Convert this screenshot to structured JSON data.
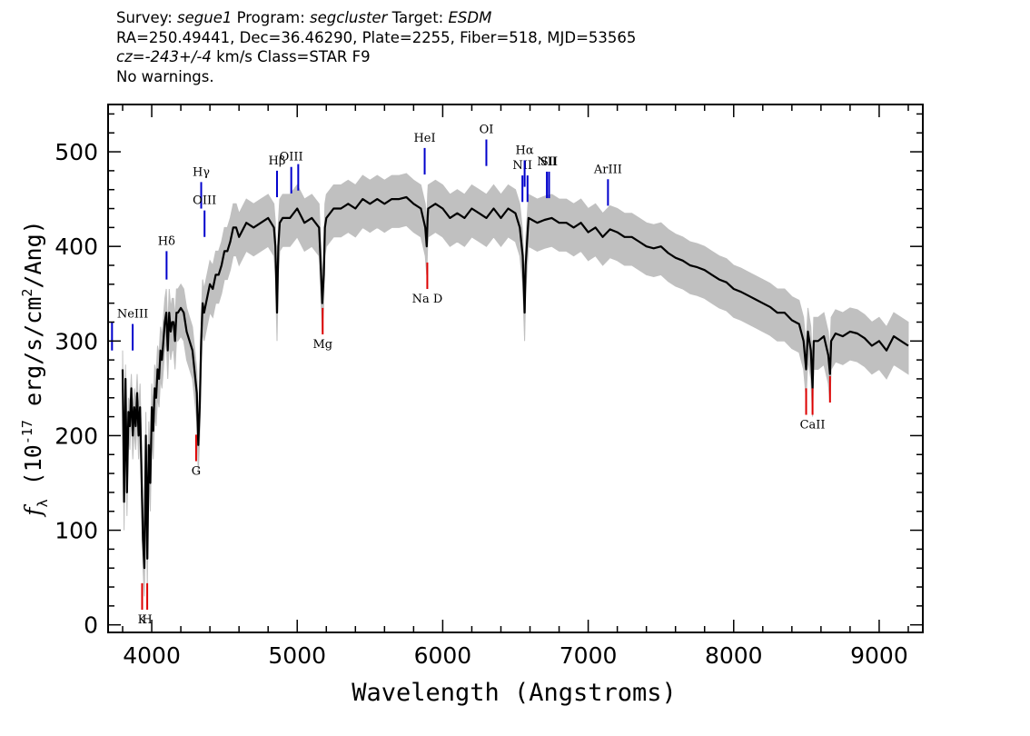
{
  "header": {
    "line1": {
      "survey_label": "Survey:",
      "survey": "segue1",
      "program_label": "Program:",
      "program": "segcluster",
      "target_label": "Target:",
      "target": "ESDM"
    },
    "line2": "RA=250.49441, Dec=36.46290, Plate=2255, Fiber=518, MJD=53565",
    "line3": {
      "cz_label": "cz=",
      "cz_value": "-243+/-4",
      "cz_rest": " km/s Class=STAR F9"
    },
    "line4": "No warnings."
  },
  "chart_data": {
    "type": "line",
    "xlabel": "Wavelength (Angstroms)",
    "ylabel": {
      "f": "f",
      "lambda": "λ",
      "open": " (10",
      "exp": "-17",
      "units": " erg/s/cm",
      "sq": "2",
      "close": "/Ang)"
    },
    "xlim": [
      3700,
      9300
    ],
    "ylim": [
      -8,
      550
    ],
    "x_ticks": [
      4000,
      5000,
      6000,
      7000,
      8000,
      9000
    ],
    "y_ticks": [
      0,
      100,
      200,
      300,
      400,
      500
    ],
    "colors": {
      "flux": "#000000",
      "error": "#c0c0c0",
      "emission": "#0000cc",
      "absorption": "#dd0000"
    },
    "series": [
      {
        "role": "flux",
        "x": [
          3800,
          3810,
          3820,
          3830,
          3840,
          3850,
          3860,
          3870,
          3880,
          3890,
          3900,
          3910,
          3920,
          3930,
          3940,
          3950,
          3960,
          3970,
          3980,
          3990,
          4000,
          4010,
          4020,
          4030,
          4040,
          4050,
          4060,
          4070,
          4080,
          4090,
          4100,
          4110,
          4120,
          4130,
          4140,
          4150,
          4160,
          4170,
          4180,
          4200,
          4220,
          4240,
          4260,
          4280,
          4300,
          4310,
          4320,
          4330,
          4340,
          4350,
          4360,
          4380,
          4400,
          4420,
          4440,
          4460,
          4480,
          4500,
          4520,
          4540,
          4560,
          4580,
          4600,
          4650,
          4700,
          4750,
          4800,
          4840,
          4850,
          4861,
          4870,
          4880,
          4900,
          4950,
          5000,
          5050,
          5100,
          5150,
          5167,
          5172,
          5183,
          5190,
          5200,
          5250,
          5300,
          5350,
          5400,
          5450,
          5500,
          5550,
          5600,
          5650,
          5700,
          5750,
          5800,
          5850,
          5880,
          5890,
          5896,
          5900,
          5950,
          6000,
          6050,
          6100,
          6150,
          6200,
          6250,
          6300,
          6350,
          6400,
          6450,
          6500,
          6530,
          6550,
          6563,
          6570,
          6590,
          6650,
          6700,
          6750,
          6800,
          6850,
          6900,
          6950,
          7000,
          7050,
          7100,
          7150,
          7200,
          7250,
          7300,
          7350,
          7400,
          7450,
          7500,
          7550,
          7600,
          7650,
          7700,
          7750,
          7800,
          7850,
          7900,
          7950,
          8000,
          8050,
          8100,
          8150,
          8200,
          8250,
          8300,
          8350,
          8400,
          8450,
          8480,
          8498,
          8510,
          8530,
          8542,
          8550,
          8580,
          8620,
          8650,
          8662,
          8670,
          8700,
          8750,
          8800,
          8850,
          8900,
          8950,
          9000,
          9050,
          9100,
          9150,
          9200
        ],
        "y": [
          270,
          130,
          260,
          140,
          225,
          210,
          250,
          200,
          230,
          210,
          245,
          200,
          230,
          160,
          90,
          60,
          200,
          70,
          190,
          150,
          230,
          205,
          250,
          240,
          270,
          260,
          290,
          280,
          300,
          320,
          330,
          290,
          330,
          310,
          320,
          320,
          300,
          330,
          330,
          335,
          330,
          310,
          300,
          290,
          260,
          245,
          190,
          230,
          300,
          340,
          330,
          345,
          360,
          355,
          370,
          370,
          380,
          395,
          395,
          405,
          420,
          420,
          410,
          425,
          420,
          425,
          430,
          420,
          400,
          330,
          400,
          425,
          430,
          430,
          440,
          425,
          430,
          420,
          360,
          340,
          370,
          420,
          430,
          440,
          440,
          445,
          440,
          450,
          445,
          450,
          445,
          450,
          450,
          452,
          445,
          440,
          420,
          400,
          430,
          440,
          445,
          440,
          430,
          435,
          430,
          440,
          435,
          430,
          440,
          430,
          440,
          435,
          420,
          390,
          330,
          380,
          430,
          425,
          428,
          430,
          425,
          425,
          420,
          425,
          415,
          420,
          410,
          418,
          415,
          410,
          410,
          405,
          400,
          398,
          400,
          393,
          388,
          385,
          380,
          378,
          375,
          370,
          365,
          362,
          355,
          352,
          348,
          344,
          340,
          336,
          330,
          330,
          322,
          318,
          300,
          270,
          310,
          290,
          250,
          300,
          300,
          305,
          285,
          265,
          300,
          308,
          305,
          310,
          308,
          303,
          295,
          300,
          290,
          305,
          300,
          295
        ]
      },
      {
        "role": "error_band",
        "upper": [
          290,
          170,
          275,
          165,
          240,
          235,
          265,
          225,
          250,
          235,
          265,
          225,
          255,
          190,
          120,
          90,
          225,
          100,
          215,
          175,
          255,
          230,
          275,
          265,
          295,
          285,
          315,
          305,
          325,
          345,
          355,
          315,
          355,
          335,
          345,
          345,
          325,
          355,
          355,
          360,
          355,
          335,
          325,
          315,
          285,
          270,
          215,
          255,
          325,
          365,
          355,
          370,
          385,
          380,
          395,
          395,
          405,
          420,
          420,
          430,
          445,
          445,
          435,
          450,
          445,
          450,
          455,
          445,
          425,
          355,
          425,
          450,
          455,
          455,
          465,
          450,
          455,
          445,
          385,
          365,
          395,
          445,
          455,
          465,
          465,
          470,
          465,
          475,
          470,
          475,
          470,
          475,
          475,
          477,
          470,
          465,
          445,
          425,
          455,
          465,
          470,
          465,
          455,
          460,
          455,
          465,
          460,
          455,
          465,
          455,
          465,
          460,
          445,
          415,
          355,
          405,
          455,
          450,
          453,
          455,
          450,
          450,
          445,
          450,
          440,
          445,
          435,
          443,
          440,
          435,
          435,
          430,
          425,
          423,
          425,
          418,
          413,
          410,
          405,
          403,
          400,
          395,
          390,
          387,
          380,
          377,
          373,
          369,
          365,
          361,
          355,
          355,
          347,
          343,
          325,
          295,
          335,
          315,
          275,
          325,
          325,
          330,
          310,
          290,
          325,
          333,
          330,
          335,
          333,
          328,
          320,
          325,
          315,
          330,
          325,
          320
        ],
        "lower": [
          250,
          100,
          235,
          115,
          200,
          185,
          225,
          175,
          205,
          185,
          220,
          175,
          205,
          130,
          60,
          30,
          170,
          40,
          160,
          120,
          200,
          175,
          220,
          210,
          240,
          230,
          260,
          250,
          270,
          290,
          300,
          260,
          300,
          280,
          290,
          290,
          270,
          300,
          300,
          305,
          300,
          280,
          270,
          260,
          230,
          215,
          160,
          200,
          270,
          310,
          300,
          315,
          330,
          325,
          340,
          340,
          350,
          365,
          365,
          375,
          390,
          390,
          380,
          395,
          390,
          395,
          400,
          390,
          370,
          300,
          370,
          395,
          400,
          400,
          410,
          395,
          400,
          390,
          330,
          310,
          340,
          390,
          400,
          410,
          410,
          415,
          410,
          420,
          415,
          420,
          415,
          420,
          420,
          422,
          415,
          410,
          390,
          370,
          400,
          410,
          415,
          410,
          400,
          405,
          400,
          410,
          405,
          400,
          410,
          400,
          410,
          405,
          390,
          360,
          300,
          350,
          400,
          395,
          398,
          400,
          395,
          395,
          390,
          395,
          385,
          390,
          380,
          388,
          385,
          380,
          380,
          375,
          370,
          368,
          370,
          363,
          358,
          355,
          350,
          348,
          345,
          340,
          335,
          332,
          325,
          322,
          318,
          314,
          310,
          306,
          300,
          300,
          292,
          288,
          270,
          240,
          280,
          260,
          220,
          270,
          270,
          275,
          255,
          235,
          270,
          278,
          275,
          280,
          278,
          273,
          265,
          270,
          260,
          275,
          270,
          265
        ]
      }
    ],
    "emission_lines": [
      {
        "label": "",
        "wave": 3727,
        "y": [
          290,
          320
        ]
      },
      {
        "label": "NeIII",
        "wave": 3869,
        "y": [
          290,
          318
        ]
      },
      {
        "label": "Hδ",
        "wave": 4102,
        "y": [
          365,
          395
        ]
      },
      {
        "label": "Hγ",
        "wave": 4340,
        "y": [
          440,
          468
        ]
      },
      {
        "label": "OIII",
        "wave": 4363,
        "y": [
          410,
          438
        ]
      },
      {
        "label": "Hβ",
        "wave": 4861,
        "y": [
          452,
          480
        ]
      },
      {
        "label": "OIII",
        "wave": 4959,
        "y": [
          456,
          484
        ]
      },
      {
        "label": "",
        "wave": 5007,
        "y": [
          459,
          487
        ]
      },
      {
        "label": "HeI",
        "wave": 5876,
        "y": [
          476,
          504
        ]
      },
      {
        "label": "OI",
        "wave": 6300,
        "y": [
          485,
          513
        ]
      },
      {
        "label": "NII",
        "wave": 6548,
        "y": [
          447,
          475
        ]
      },
      {
        "label": "Hα",
        "wave": 6563,
        "y": [
          463,
          491
        ]
      },
      {
        "label": "",
        "wave": 6583,
        "y": [
          447,
          475
        ]
      },
      {
        "label": "NII",
        "wave": 6716,
        "y": [
          451,
          479
        ]
      },
      {
        "label": "SII",
        "wave": 6731,
        "y": [
          451,
          479
        ]
      },
      {
        "label": "ArIII",
        "wave": 7136,
        "y": [
          443,
          471
        ]
      }
    ],
    "absorption_lines": [
      {
        "label": "K",
        "wave": 3934,
        "y": [
          16,
          44
        ]
      },
      {
        "label": "H",
        "wave": 3969,
        "y": [
          16,
          44
        ]
      },
      {
        "label": "G",
        "wave": 4305,
        "y": [
          173,
          201
        ]
      },
      {
        "label": "Mg",
        "wave": 5175,
        "y": [
          307,
          335
        ]
      },
      {
        "label": "Na D",
        "wave": 5894,
        "y": [
          355,
          383
        ]
      },
      {
        "label": "",
        "wave": 8498,
        "y": [
          222,
          250
        ]
      },
      {
        "label": "CaII",
        "wave": 8542,
        "y": [
          222,
          250
        ]
      },
      {
        "label": "",
        "wave": 8662,
        "y": [
          235,
          263
        ]
      }
    ]
  }
}
